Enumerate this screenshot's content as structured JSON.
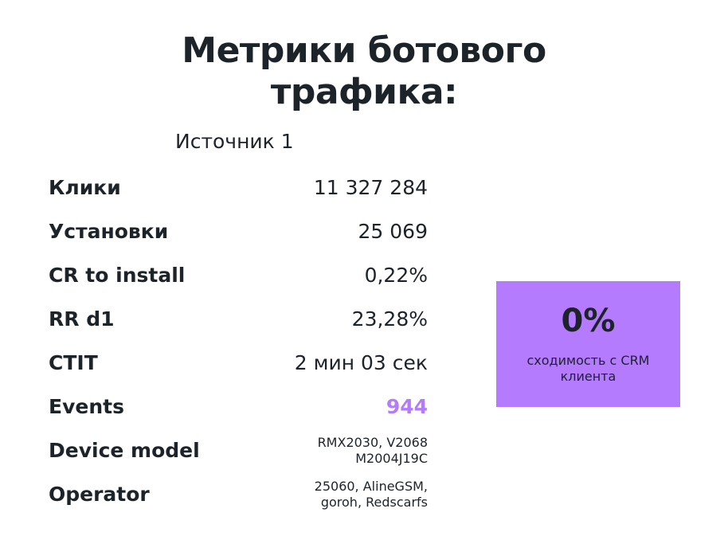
{
  "title_line1": "Метрики ботового",
  "title_line2": "трафика:",
  "source": "Источник 1",
  "rows": [
    {
      "label": "Клики",
      "value": "11 327 284"
    },
    {
      "label": "Установки",
      "value": "25 069"
    },
    {
      "label": "CR to install",
      "value": "0,22%"
    },
    {
      "label": "RR d1",
      "value": "23,28%"
    },
    {
      "label": "CTIT",
      "value": "2 мин 03 сек"
    },
    {
      "label": "Events",
      "value": "944"
    },
    {
      "label": "Device model",
      "value_line1": "RMX2030, V2068",
      "value_line2": "M2004J19C"
    },
    {
      "label": "Operator",
      "value_line1": "25060, AlineGSM,",
      "value_line2": "goroh, Redscarfs"
    }
  ],
  "crm": {
    "value": "0%",
    "caption": "сходимость с CRM клиента"
  },
  "colors": {
    "accent": "#b57bff",
    "text": "#1c2329"
  }
}
